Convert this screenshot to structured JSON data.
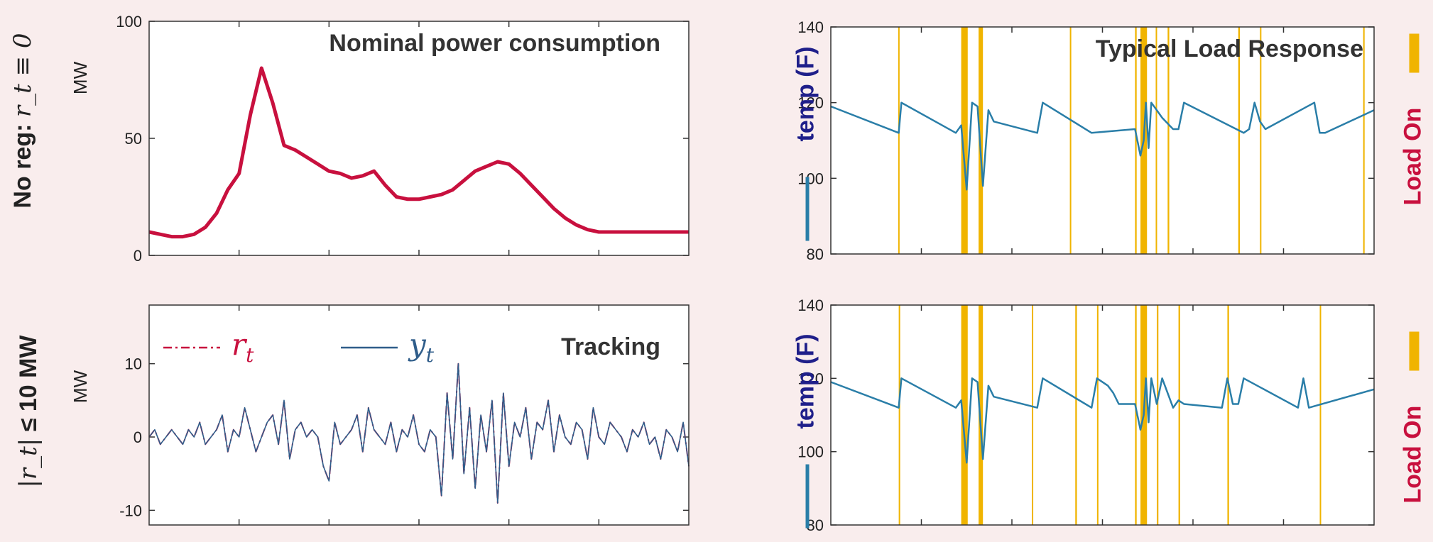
{
  "row_labels": {
    "top": {
      "text": "No reg: ",
      "math": "r_t ≡ 0"
    },
    "bottom": {
      "math_left": "|r_t|",
      "text": " ≤ 10 MW"
    }
  },
  "colors": {
    "power": "#c8103e",
    "temp": "#2a7ea8",
    "load": "#f0b400",
    "load_label": "#c8103e",
    "temp_label": "#1f1f8a",
    "background": "#f9eded"
  },
  "chart_data": [
    {
      "id": "power",
      "type": "line",
      "title": "Nominal power consumption",
      "ylabel": "MW",
      "ylim": [
        0,
        100
      ],
      "yticks": [
        0,
        50,
        100
      ],
      "xlim": [
        0,
        96
      ],
      "x": [
        0,
        2,
        4,
        6,
        8,
        10,
        12,
        14,
        16,
        18,
        20,
        22,
        24,
        26,
        28,
        30,
        32,
        34,
        36,
        38,
        40,
        42,
        44,
        46,
        48,
        50,
        52,
        54,
        56,
        58,
        60,
        62,
        64,
        66,
        68,
        70,
        72,
        74,
        76,
        78,
        80,
        82,
        84,
        86,
        88,
        90,
        92,
        94,
        96
      ],
      "series": [
        {
          "values": [
            10,
            9,
            8,
            8,
            9,
            12,
            18,
            28,
            35,
            60,
            80,
            65,
            47,
            45,
            42,
            39,
            36,
            35,
            33,
            34,
            36,
            30,
            25,
            24,
            24,
            25,
            26,
            28,
            32,
            36,
            38,
            40,
            39,
            35,
            30,
            25,
            20,
            16,
            13,
            11,
            10,
            10,
            10,
            10,
            10,
            10,
            10,
            10,
            10
          ]
        }
      ]
    },
    {
      "id": "tracking",
      "type": "line",
      "title": "Tracking",
      "ylabel": "MW",
      "ylim": [
        -12,
        18
      ],
      "yticks": [
        -10,
        0,
        10
      ],
      "xlim": [
        0,
        96
      ],
      "series": [
        {
          "name": "r_t",
          "legend": "r",
          "sub": "t",
          "style": "dashdot",
          "values": [
            0,
            1,
            -1,
            0,
            1,
            0,
            -1,
            1,
            0,
            2,
            -1,
            0,
            1,
            3,
            -2,
            1,
            0,
            4,
            1,
            -2,
            0,
            2,
            3,
            -1,
            5,
            -3,
            1,
            2,
            0,
            1,
            0,
            -4,
            -6,
            2,
            -1,
            0,
            1,
            3,
            -2,
            4,
            1,
            0,
            -1,
            2,
            -2,
            1,
            0,
            3,
            -1,
            -2,
            1,
            0,
            -8,
            6,
            -3,
            10,
            -5,
            4,
            -7,
            3,
            -2,
            5,
            -9,
            6,
            -4,
            2,
            0,
            4,
            -3,
            2,
            1,
            5,
            -2,
            3,
            0,
            -1,
            2,
            1,
            -3,
            4,
            0,
            -1,
            2,
            1,
            0,
            -2,
            1,
            0,
            2,
            -1,
            0,
            -3,
            1,
            0,
            -2,
            2,
            -4
          ]
        },
        {
          "name": "y_t",
          "legend": "y",
          "sub": "t",
          "style": "solid",
          "values": [
            0,
            1,
            -1,
            0,
            1,
            0,
            -1,
            1,
            0,
            2,
            -1,
            0,
            1,
            3,
            -2,
            1,
            0,
            4,
            1,
            -2,
            0,
            2,
            3,
            -1,
            5,
            -3,
            1,
            2,
            0,
            1,
            0,
            -4,
            -6,
            2,
            -1,
            0,
            1,
            3,
            -2,
            4,
            1,
            0,
            -1,
            2,
            -2,
            1,
            0,
            3,
            -1,
            -2,
            1,
            0,
            -8,
            6,
            -3,
            10,
            -5,
            4,
            -7,
            3,
            -2,
            5,
            -9,
            6,
            -4,
            2,
            0,
            4,
            -3,
            2,
            1,
            5,
            -2,
            3,
            0,
            -1,
            2,
            1,
            -3,
            4,
            0,
            -1,
            2,
            1,
            0,
            -2,
            1,
            0,
            2,
            -1,
            0,
            -3,
            1,
            0,
            -2,
            2,
            -4
          ]
        }
      ]
    },
    {
      "id": "load_top",
      "type": "line",
      "title": "Typical Load Response",
      "ylabel": "temp (F)",
      "right_label": "Load On",
      "ylim": [
        80,
        140
      ],
      "yticks": [
        80,
        100,
        120,
        140
      ],
      "xlim": [
        0,
        100
      ],
      "load_on": [
        [
          12.4,
          12.6
        ],
        [
          24.0,
          25.2
        ],
        [
          27.2,
          28.0
        ],
        [
          44.0,
          44.2
        ],
        [
          56.0,
          56.3
        ],
        [
          57.0,
          58.2
        ],
        [
          59.8,
          60.0
        ],
        [
          62.0,
          62.3
        ],
        [
          75.0,
          75.3
        ],
        [
          79.0,
          79.2
        ],
        [
          98.0,
          98.2
        ]
      ],
      "series": [
        {
          "name": "temp",
          "x": [
            0,
            12.5,
            13,
            23,
            24,
            25,
            26,
            27,
            28,
            29,
            30,
            38,
            39,
            48,
            56,
            57,
            57.6,
            58,
            58.5,
            59,
            60,
            61,
            63,
            64,
            65,
            76,
            77,
            78,
            79,
            80,
            89,
            90,
            91,
            100
          ],
          "values": [
            119,
            112,
            120,
            112,
            114,
            97,
            120,
            119,
            98,
            118,
            115,
            112,
            120,
            112,
            113,
            106,
            110,
            120,
            108,
            120,
            118,
            116,
            113,
            113,
            120,
            112,
            113,
            120,
            115,
            113,
            120,
            112,
            112,
            118
          ]
        }
      ]
    },
    {
      "id": "load_bottom",
      "type": "line",
      "ylabel": "temp (F)",
      "right_label": "Load On",
      "ylim": [
        80,
        140
      ],
      "yticks": [
        80,
        100,
        120,
        140
      ],
      "xlim": [
        0,
        100
      ],
      "load_on": [
        [
          12.5,
          12.6
        ],
        [
          24.0,
          25.2
        ],
        [
          27.2,
          28.0
        ],
        [
          37.0,
          37.2
        ],
        [
          45.0,
          45.3
        ],
        [
          49.0,
          49.2
        ],
        [
          56.0,
          56.3
        ],
        [
          57.0,
          58.2
        ],
        [
          60.0,
          60.3
        ],
        [
          64.0,
          64.3
        ],
        [
          73.0,
          73.3
        ],
        [
          90.0,
          90.2
        ]
      ],
      "series": [
        {
          "name": "temp",
          "x": [
            0,
            12.5,
            13,
            23,
            24,
            25,
            26,
            27,
            28,
            29,
            30,
            38,
            39,
            48,
            49,
            51,
            52,
            53,
            56,
            57,
            57.6,
            58,
            58.5,
            59,
            60,
            61,
            63,
            64,
            65,
            72,
            73,
            74,
            75,
            76,
            86,
            87,
            88,
            100
          ],
          "values": [
            119,
            112,
            120,
            112,
            114,
            97,
            120,
            119,
            98,
            118,
            115,
            112,
            120,
            112,
            120,
            118,
            116,
            113,
            113,
            106,
            110,
            120,
            108,
            120,
            113,
            120,
            112,
            114,
            113,
            112,
            120,
            113,
            113,
            120,
            112,
            120,
            112,
            117
          ]
        }
      ]
    }
  ]
}
